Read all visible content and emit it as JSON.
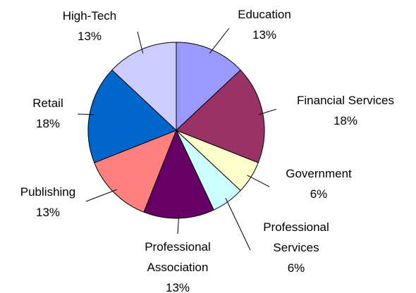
{
  "chart_data": {
    "type": "pie",
    "categories": [
      "Education",
      "Financial Services",
      "Government",
      "Professional Services",
      "Professional Association",
      "Publishing",
      "Retail",
      "High-Tech"
    ],
    "values": [
      13,
      18,
      6,
      6,
      13,
      13,
      18,
      13
    ],
    "value_labels": [
      "13%",
      "18%",
      "6%",
      "6%",
      "13%",
      "13%",
      "18%",
      "13%"
    ],
    "colors": [
      "#9999ff",
      "#993366",
      "#ffffcc",
      "#ccffff",
      "#660066",
      "#ff8080",
      "#0066cc",
      "#ccccff"
    ]
  }
}
